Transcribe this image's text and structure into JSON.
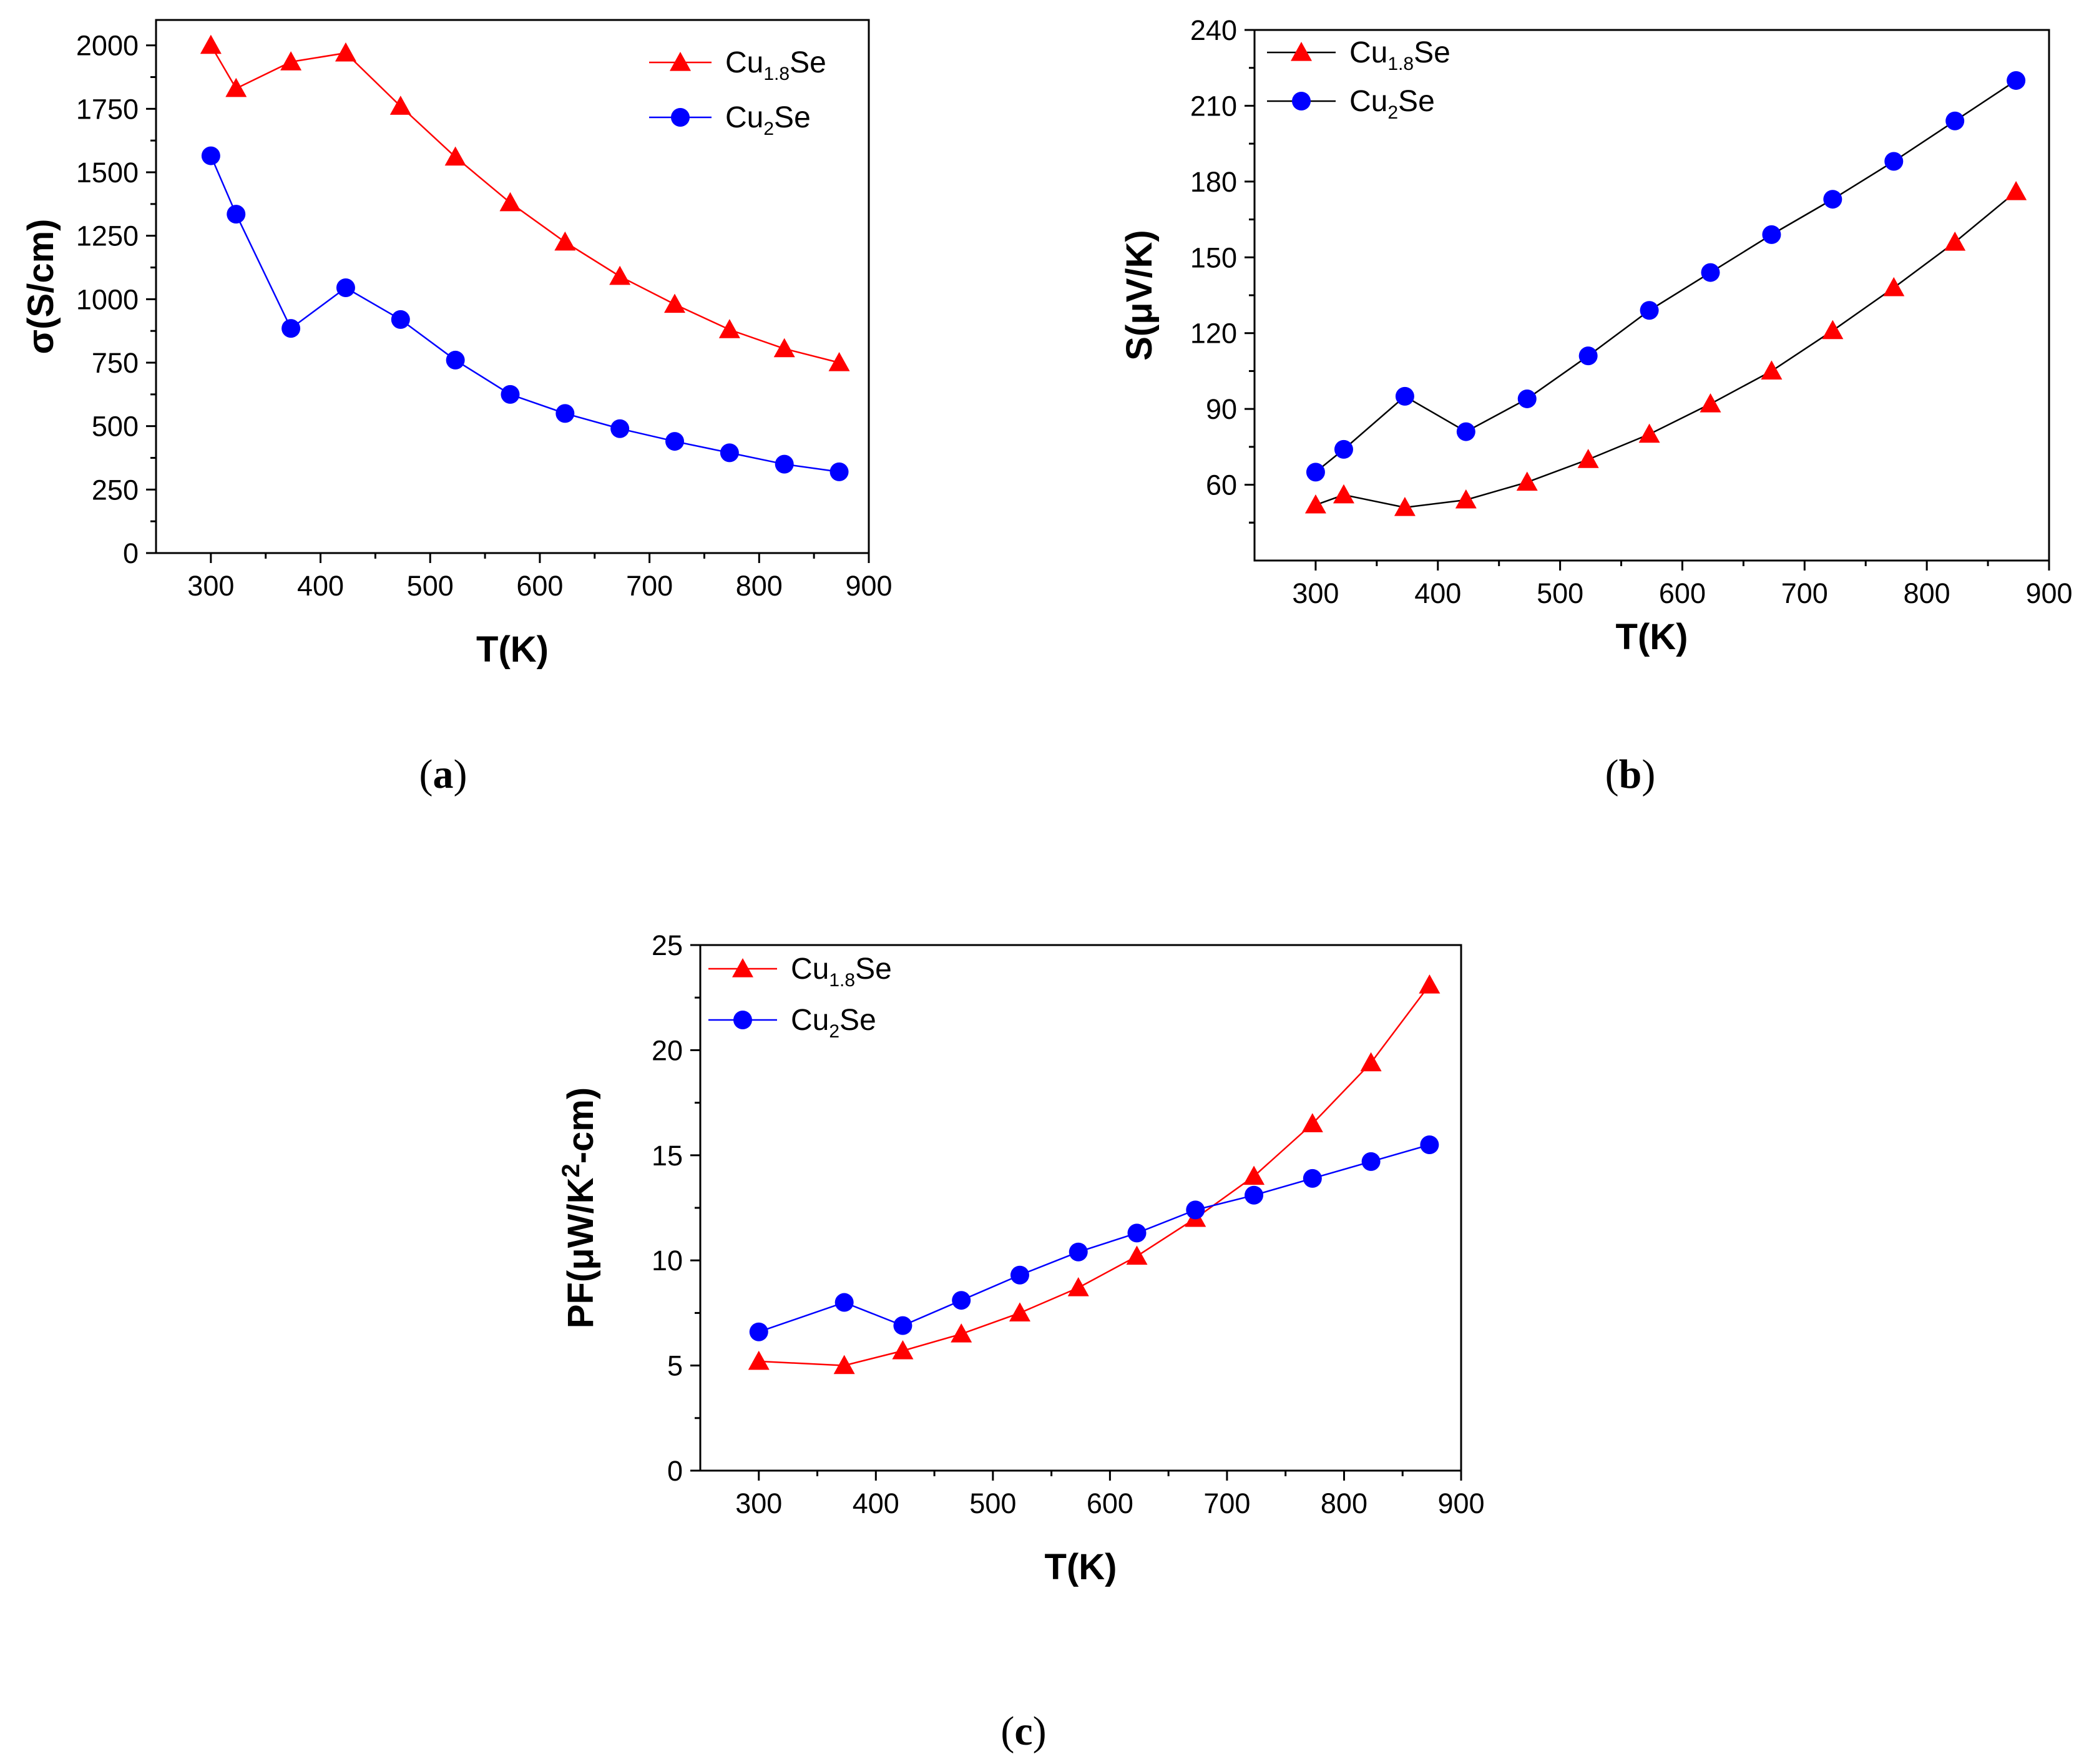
{
  "chart_data": [
    {
      "type": "line",
      "panel": "a",
      "panel_label": "(a)",
      "panel_label_parts": [
        "(",
        "a",
        ")"
      ],
      "xlabel": "T(K)",
      "ylabel": "σ(S/cm)",
      "xlim": [
        250,
        900
      ],
      "ylim": [
        0,
        2100
      ],
      "xticks": [
        300,
        400,
        500,
        600,
        700,
        800,
        900
      ],
      "yticks": [
        0,
        250,
        500,
        750,
        1000,
        1250,
        1500,
        1750,
        2000
      ],
      "legend_position": "top-right",
      "series": [
        {
          "name": "Cu1.8Se",
          "name_parts": [
            "Cu",
            "1.8",
            "Se"
          ],
          "color": "#ff0000",
          "line_color": "#ff0000",
          "marker": "triangle",
          "x": [
            300,
            323,
            373,
            423,
            473,
            523,
            573,
            623,
            673,
            723,
            773,
            823,
            873
          ],
          "y": [
            2000,
            1830,
            1935,
            1970,
            1760,
            1560,
            1380,
            1225,
            1090,
            980,
            880,
            805,
            750
          ]
        },
        {
          "name": "Cu2Se",
          "name_parts": [
            "Cu",
            "2",
            "Se"
          ],
          "color": "#0000ff",
          "line_color": "#0000ff",
          "marker": "circle",
          "x": [
            300,
            323,
            373,
            423,
            473,
            523,
            573,
            623,
            673,
            723,
            773,
            823,
            873
          ],
          "y": [
            1565,
            1335,
            885,
            1045,
            920,
            760,
            625,
            550,
            490,
            440,
            395,
            350,
            320
          ]
        }
      ]
    },
    {
      "type": "line",
      "panel": "b",
      "panel_label": "(b)",
      "panel_label_parts": [
        "(",
        "b",
        ")"
      ],
      "xlabel": "T(K)",
      "ylabel": "S(μV/K)",
      "xlim": [
        250,
        900
      ],
      "ylim": [
        30,
        240
      ],
      "xticks": [
        300,
        400,
        500,
        600,
        700,
        800,
        900
      ],
      "yticks": [
        60,
        90,
        120,
        150,
        180,
        210,
        240
      ],
      "legend_position": "top-left",
      "series": [
        {
          "name": "Cu1.8Se",
          "name_parts": [
            "Cu",
            "1.8",
            "Se"
          ],
          "color": "#ff0000",
          "line_color": "#000000",
          "marker": "triangle",
          "x": [
            300,
            323,
            373,
            423,
            473,
            523,
            573,
            623,
            673,
            723,
            773,
            823,
            873
          ],
          "y": [
            52,
            56,
            51,
            54,
            61,
            70,
            80,
            92,
            105,
            121,
            138,
            156,
            176
          ]
        },
        {
          "name": "Cu2Se",
          "name_parts": [
            "Cu",
            "2",
            "Se"
          ],
          "color": "#0000ff",
          "line_color": "#000000",
          "marker": "circle",
          "x": [
            300,
            323,
            373,
            423,
            473,
            523,
            573,
            623,
            673,
            723,
            773,
            823,
            873
          ],
          "y": [
            65,
            74,
            95,
            81,
            94,
            111,
            129,
            144,
            159,
            173,
            188,
            204,
            220
          ]
        }
      ]
    },
    {
      "type": "line",
      "panel": "c",
      "panel_label": "(c)",
      "panel_label_parts": [
        "(",
        "c",
        ")"
      ],
      "xlabel": "T(K)",
      "ylabel": "PF(μW/K2-cm)",
      "ylabel_parts": [
        "PF(μW/K",
        "2",
        "-cm)"
      ],
      "xlim": [
        250,
        900
      ],
      "ylim": [
        0,
        25
      ],
      "xticks": [
        300,
        400,
        500,
        600,
        700,
        800,
        900
      ],
      "yticks": [
        0,
        5,
        10,
        15,
        20,
        25
      ],
      "legend_position": "top-left",
      "series": [
        {
          "name": "Cu1.8Se",
          "name_parts": [
            "Cu",
            "1.8",
            "Se"
          ],
          "color": "#ff0000",
          "line_color": "#ff0000",
          "marker": "triangle",
          "x": [
            300,
            373,
            423,
            473,
            523,
            573,
            623,
            673,
            723,
            773,
            823,
            873
          ],
          "y": [
            5.2,
            5.0,
            5.7,
            6.5,
            7.5,
            8.7,
            10.2,
            12.0,
            14.0,
            16.5,
            19.4,
            23.1
          ]
        },
        {
          "name": "Cu2Se",
          "name_parts": [
            "Cu",
            "2",
            "Se"
          ],
          "color": "#0000ff",
          "line_color": "#0000ff",
          "marker": "circle",
          "x": [
            300,
            373,
            423,
            473,
            523,
            573,
            623,
            673,
            723,
            773,
            823,
            873
          ],
          "y": [
            6.6,
            8.0,
            6.9,
            8.1,
            9.3,
            10.4,
            11.3,
            12.4,
            13.1,
            13.9,
            14.7,
            15.5
          ]
        }
      ]
    }
  ]
}
